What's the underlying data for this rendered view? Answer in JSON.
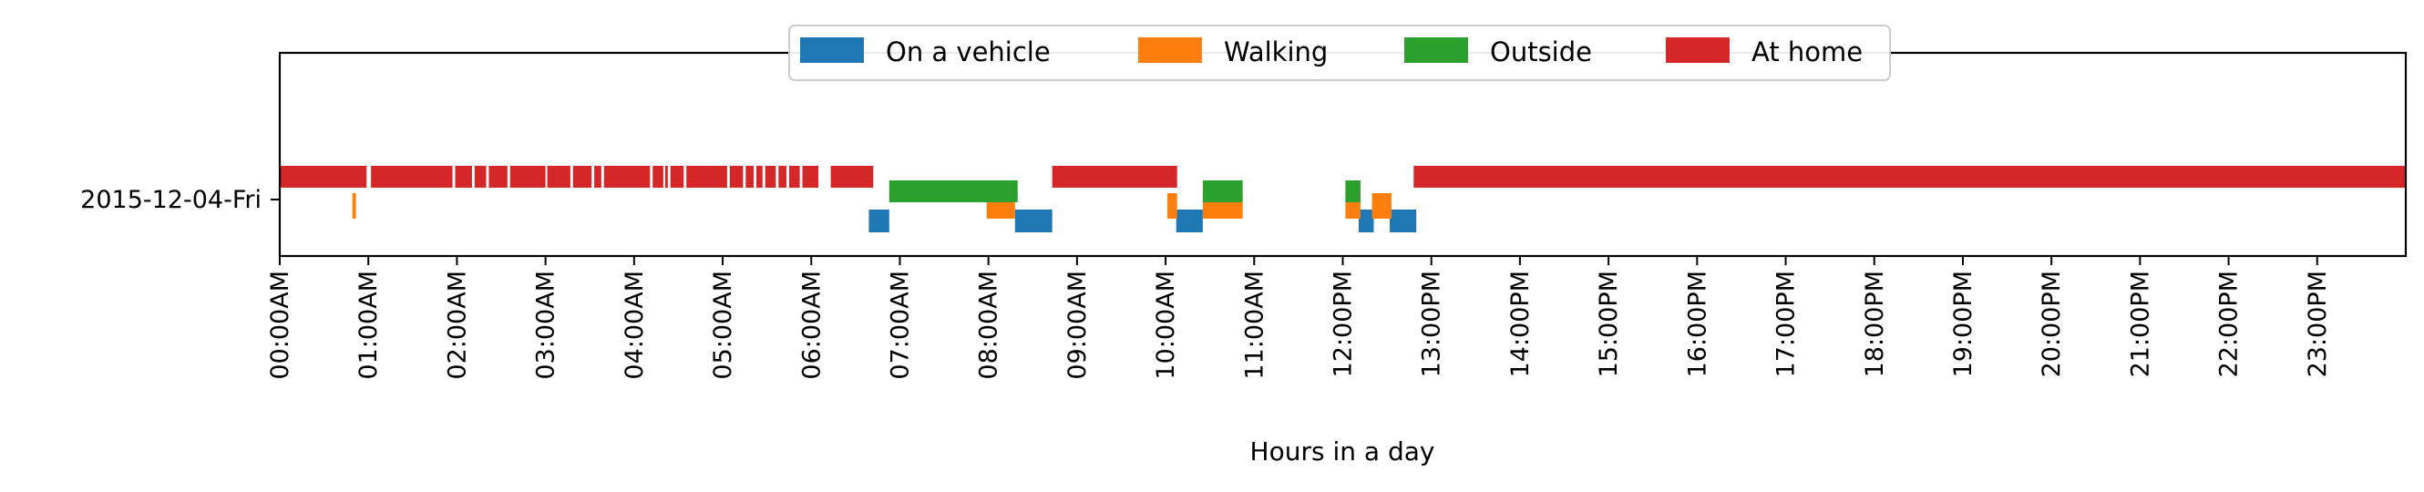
{
  "chart_data": {
    "type": "timeline",
    "title": "",
    "xlabel": "Hours in a day",
    "ylabel": "",
    "xlim": [
      0,
      24
    ],
    "y_category": "2015-12-04-Fri",
    "x_tick_labels": [
      "00:00AM",
      "01:00AM",
      "02:00AM",
      "03:00AM",
      "04:00AM",
      "05:00AM",
      "06:00AM",
      "07:00AM",
      "08:00AM",
      "09:00AM",
      "10:00AM",
      "11:00AM",
      "12:00PM",
      "13:00PM",
      "14:00PM",
      "15:00PM",
      "16:00PM",
      "17:00PM",
      "18:00PM",
      "19:00PM",
      "20:00PM",
      "21:00PM",
      "22:00PM",
      "23:00PM"
    ],
    "legend_position": "top-center",
    "series": [
      {
        "name": "On a vehicle",
        "color": "#1f77b4",
        "intervals": [
          [
            6.65,
            6.88
          ],
          [
            8.3,
            8.72
          ],
          [
            10.12,
            10.42
          ],
          [
            12.18,
            12.35
          ],
          [
            12.53,
            12.83
          ]
        ]
      },
      {
        "name": "Walking",
        "color": "#ff7f0e",
        "intervals": [
          [
            0.82,
            0.86
          ],
          [
            7.98,
            8.3
          ],
          [
            10.02,
            10.13
          ],
          [
            10.42,
            10.87
          ],
          [
            12.03,
            12.2
          ],
          [
            12.33,
            12.55
          ]
        ]
      },
      {
        "name": "Outside",
        "color": "#2ca02c",
        "intervals": [
          [
            6.88,
            8.33
          ],
          [
            10.42,
            10.87
          ],
          [
            12.03,
            12.2
          ]
        ]
      },
      {
        "name": "At home",
        "color": "#d62728",
        "intervals": [
          [
            0.0,
            0.98
          ],
          [
            1.03,
            1.95
          ],
          [
            1.98,
            2.17
          ],
          [
            2.2,
            2.33
          ],
          [
            2.36,
            2.57
          ],
          [
            2.6,
            3.0
          ],
          [
            3.02,
            3.28
          ],
          [
            3.31,
            3.52
          ],
          [
            3.55,
            3.63
          ],
          [
            3.66,
            4.18
          ],
          [
            4.21,
            4.33
          ],
          [
            4.35,
            4.38
          ],
          [
            4.41,
            4.56
          ],
          [
            4.59,
            5.05
          ],
          [
            5.08,
            5.23
          ],
          [
            5.26,
            5.35
          ],
          [
            5.38,
            5.45
          ],
          [
            5.48,
            5.6
          ],
          [
            5.63,
            5.72
          ],
          [
            5.75,
            5.87
          ],
          [
            5.9,
            6.08
          ],
          [
            6.22,
            6.7
          ],
          [
            8.72,
            10.13
          ],
          [
            12.8,
            24.0
          ]
        ]
      }
    ]
  }
}
